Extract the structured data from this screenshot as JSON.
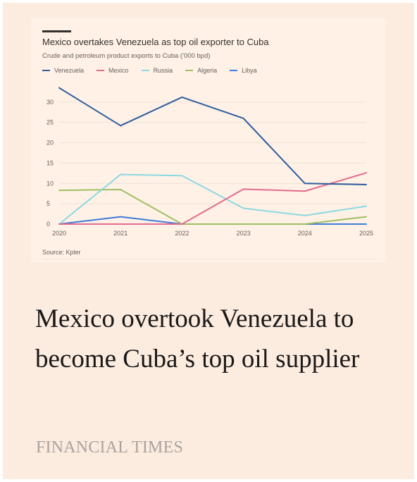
{
  "chart_data": {
    "type": "line",
    "title": "Mexico overtakes Venezuela as top oil exporter to Cuba",
    "subtitle": "Crude and petroleum product exports to Cuba ('000 bpd)",
    "x": [
      2020,
      2021,
      2022,
      2023,
      2024,
      2025
    ],
    "ylim": [
      0,
      35
    ],
    "yticks": [
      0,
      5,
      10,
      15,
      20,
      25,
      30
    ],
    "grid": true,
    "legend_position": "top-left",
    "series": [
      {
        "name": "Venezuela",
        "color": "#2e5d9f",
        "values": [
          33.5,
          24.2,
          31.2,
          26.0,
          10.0,
          9.7
        ]
      },
      {
        "name": "Mexico",
        "color": "#e46c8f",
        "values": [
          0,
          0,
          0,
          8.6,
          8.1,
          12.6
        ]
      },
      {
        "name": "Russia",
        "color": "#8bd9e3",
        "values": [
          0,
          12.2,
          11.9,
          3.9,
          2.1,
          4.4
        ]
      },
      {
        "name": "Algeria",
        "color": "#9fbe63",
        "values": [
          8.3,
          8.5,
          0,
          0,
          0,
          1.8
        ]
      },
      {
        "name": "Libya",
        "color": "#3d7bd9",
        "values": [
          0,
          1.8,
          0,
          0,
          0,
          0
        ]
      }
    ],
    "source": "Source: Kpler"
  },
  "headline": "Mexico overtook Venezuela to become Cuba’s top oil supplier",
  "brand": "FINANCIAL TIMES",
  "colors": {
    "page_background": "#fcebdf",
    "chart_background": "#fff1e5"
  }
}
